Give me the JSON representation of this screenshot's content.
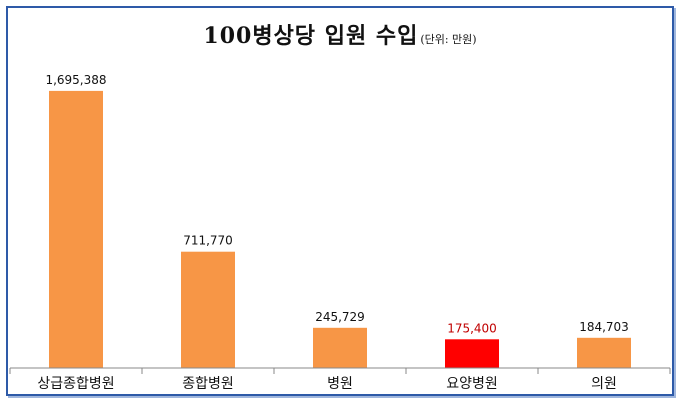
{
  "title": {
    "main": "100병상당 입원 수입",
    "unit": "(단위: 만원)"
  },
  "chart_data": {
    "type": "bar",
    "title": "100병상당 입원 수입",
    "subtitle": "(단위: 만원)",
    "categories": [
      "상급종합병원",
      "종합병원",
      "병원",
      "요양병원",
      "의원"
    ],
    "values": [
      1695388,
      711770,
      245729,
      175400,
      184703
    ],
    "value_labels": [
      "1,695,388",
      "711,770",
      "245,729",
      "175,400",
      "184,703"
    ],
    "ylim": [
      0,
      1750000
    ],
    "grid": false,
    "legend": "none",
    "colors": {
      "default_bar": "#f79646",
      "highlight_bar": "#ff0000",
      "default_label": "#111111",
      "highlight_label": "#c00000",
      "axis": "#888888"
    },
    "highlight_index": 3
  }
}
